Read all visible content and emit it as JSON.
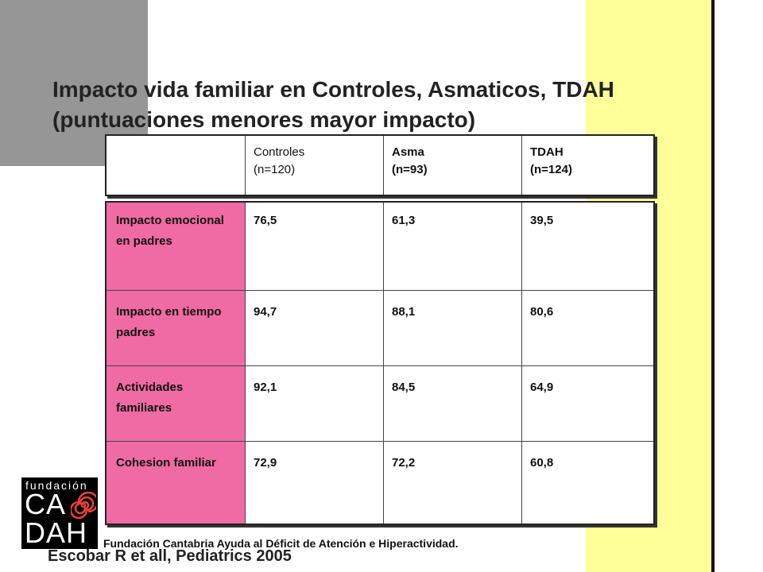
{
  "title": {
    "line1": "Impacto vida familiar en Controles, Asmaticos, TDAH",
    "line2": "(puntuaciones menores mayor impacto)"
  },
  "table": {
    "headers": [
      {
        "name": "Controles",
        "n": "(n=120)"
      },
      {
        "name": "Asma",
        "n": "(n=93)"
      },
      {
        "name": "TDAH",
        "n": "(n=124)"
      }
    ],
    "rows": [
      {
        "label": "Impacto emocional en padres",
        "values": [
          "76,5",
          "61,3",
          "39,5"
        ]
      },
      {
        "label": "Impacto en tiempo padres",
        "values": [
          "94,7",
          "88,1",
          "80,6"
        ]
      },
      {
        "label": "Actividades familiares",
        "values": [
          "92,1",
          "84,5",
          "64,9"
        ]
      },
      {
        "label": "Cohesion familiar",
        "values": [
          "72,9",
          "72,2",
          "60,8"
        ]
      }
    ]
  },
  "logo": {
    "top": "fundación",
    "line1": "CA",
    "line2": "DAH"
  },
  "footer": "Fundación Cantabria Ayuda al Déficit de Atención e Hiperactividad.",
  "citation": "Escobar R et all, Pediatrics 2005",
  "colors": {
    "accent_pink": "#f06aa4",
    "band_yellow": "#ffff99",
    "block_gray": "#969696"
  }
}
